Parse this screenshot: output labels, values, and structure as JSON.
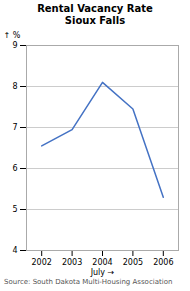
{
  "chart_data": {
    "type": "line",
    "title": "Rental Vacancy Rate",
    "subtitle": "Sioux Falls",
    "x": [
      2002,
      2003,
      2004,
      2005,
      2006
    ],
    "values": [
      6.55,
      6.95,
      8.1,
      7.45,
      5.3
    ],
    "color": "#4472c4",
    "xlabel": "July",
    "ylabel": "%",
    "xlim": [
      2001.5,
      2006.5
    ],
    "ylim": [
      4,
      9
    ],
    "xticks": [
      2002,
      2003,
      2004,
      2005,
      2006
    ],
    "yticks": [
      4,
      5,
      6,
      7,
      8,
      9
    ],
    "grid": true,
    "annotations": [
      "Source: South Dakota Multi-Housing Association"
    ]
  }
}
